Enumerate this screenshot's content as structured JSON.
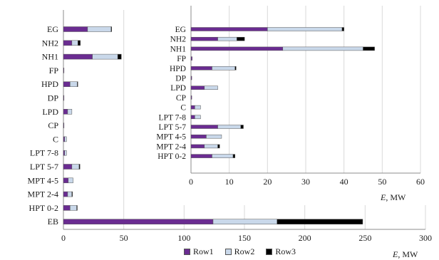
{
  "colors": {
    "row1": "#6a2c91",
    "row2": "#c9d8ea",
    "row3": "#000000",
    "grid": "#d9d9d9",
    "axis": "#8c8c8c"
  },
  "legend": [
    "Row1",
    "Row2",
    "Row3"
  ],
  "main_axis_label": "E,  MW",
  "inset_axis_label": "E,  MW",
  "chart_data": [
    {
      "type": "bar",
      "orientation": "horizontal",
      "stacked": true,
      "categories": [
        "EG",
        "NH2",
        "NH1",
        "FP",
        "HPD",
        "DP",
        "LPD",
        "CP",
        "C",
        "LPT 7-8",
        "LPT 5-7",
        "MPT 4-5",
        "MPT 2-4",
        "HPT 0-2",
        "EB"
      ],
      "series": [
        {
          "name": "Row1",
          "values": [
            20,
            7,
            24,
            0.3,
            5.5,
            0.2,
            3.5,
            0.2,
            1,
            1,
            7,
            4,
            3.5,
            5.5,
            124
          ]
        },
        {
          "name": "Row2",
          "values": [
            19.5,
            5,
            21,
            0,
            6,
            0,
            3.5,
            0,
            1.5,
            1.5,
            6,
            4,
            3.5,
            5.5,
            53
          ]
        },
        {
          "name": "Row3",
          "values": [
            0.5,
            2,
            3,
            0,
            0.3,
            0,
            0,
            0,
            0,
            0,
            0.7,
            0,
            0.5,
            0.5,
            71
          ]
        }
      ],
      "xlim": [
        0,
        300
      ],
      "xticks": [
        0,
        50,
        100,
        150,
        200,
        250,
        300
      ],
      "xlabel": "E,  MW",
      "legend_position": "bottom",
      "grid": "vertical"
    },
    {
      "type": "bar",
      "orientation": "horizontal",
      "stacked": true,
      "categories": [
        "EG",
        "NH2",
        "NH1",
        "FP",
        "HPD",
        "DP",
        "LPD",
        "CP",
        "C",
        "LPT 7-8",
        "LPT 5-7",
        "MPT 4-5",
        "MPT 2-4",
        "HPT 0-2"
      ],
      "series": [
        {
          "name": "Row1",
          "values": [
            20,
            7,
            24,
            0.3,
            5.5,
            0.2,
            3.5,
            0.2,
            1,
            1,
            7,
            4,
            3.5,
            5.5
          ]
        },
        {
          "name": "Row2",
          "values": [
            19.5,
            5,
            21,
            0,
            6,
            0,
            3.5,
            0,
            1.5,
            1.5,
            6,
            4,
            3.5,
            5.5
          ]
        },
        {
          "name": "Row3",
          "values": [
            0.5,
            2,
            3,
            0,
            0.3,
            0,
            0,
            0,
            0,
            0,
            0.7,
            0,
            0.5,
            0.5
          ]
        }
      ],
      "xlim": [
        0,
        60
      ],
      "xticks": [
        0,
        10,
        20,
        30,
        40,
        50,
        60
      ],
      "xlabel": "E,  MW",
      "grid": "vertical"
    }
  ]
}
